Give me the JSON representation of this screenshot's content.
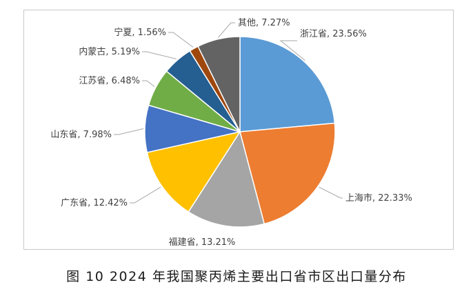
{
  "caption": "图 10 2024 年我国聚丙烯主要出口省市区出口量分布",
  "chart_data": {
    "type": "pie",
    "title": "",
    "start": "12 o'clock",
    "direction": "clockwise",
    "legend": "none",
    "slices": [
      {
        "label": "浙江省",
        "value": 23.56,
        "text": "浙江省, 23.56%",
        "color": "#5b9bd5"
      },
      {
        "label": "上海市",
        "value": 22.33,
        "text": "上海市, 22.33%",
        "color": "#ed7d31"
      },
      {
        "label": "福建省",
        "value": 13.21,
        "text": "福建省, 13.21%",
        "color": "#a5a5a5"
      },
      {
        "label": "广东省",
        "value": 12.42,
        "text": "广东省, 12.42%",
        "color": "#ffc000"
      },
      {
        "label": "山东省",
        "value": 7.98,
        "text": "山东省, 7.98%",
        "color": "#4472c4"
      },
      {
        "label": "江苏省",
        "value": 6.48,
        "text": "江苏省, 6.48%",
        "color": "#70ad47"
      },
      {
        "label": "内蒙古",
        "value": 5.19,
        "text": "内蒙古, 5.19%",
        "color": "#255e91"
      },
      {
        "label": "宁夏",
        "value": 1.56,
        "text": "宁夏, 1.56%",
        "color": "#9e480e"
      },
      {
        "label": "其他",
        "value": 7.27,
        "text": "其他, 7.27%",
        "color": "#636363"
      }
    ]
  }
}
